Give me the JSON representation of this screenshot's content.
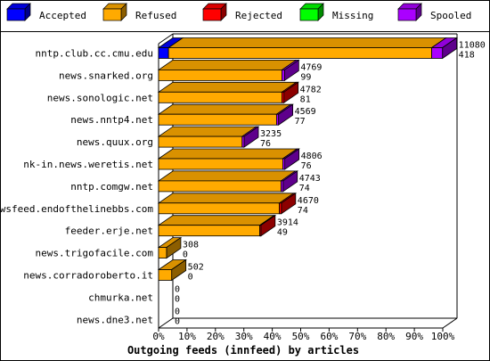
{
  "legend": [
    {
      "label": "Accepted",
      "color": "#0000ff"
    },
    {
      "label": "Refused",
      "color": "#ffaa00"
    },
    {
      "label": "Rejected",
      "color": "#ff0000"
    },
    {
      "label": "Missing",
      "color": "#00ff00"
    },
    {
      "label": "Spooled",
      "color": "#aa00ff"
    }
  ],
  "chart_data": {
    "type": "bar",
    "orientation": "horizontal",
    "stacked": true,
    "three_d": true,
    "title": "",
    "xlabel": "Outgoing feeds (innfeed) by articles",
    "ylabel": "",
    "xlim": [
      0,
      100
    ],
    "x_unit": "%",
    "x_ticks": [
      "0%",
      "10%",
      "20%",
      "30%",
      "40%",
      "50%",
      "60%",
      "70%",
      "80%",
      "90%",
      "100%"
    ],
    "categories": [
      "nntp.club.cc.cmu.edu",
      "news.snarked.org",
      "news.sonologic.net",
      "news.nntp4.net",
      "news.quux.org",
      "nk-in.news.weretis.net",
      "nntp.comgw.net",
      "newsfeed.endofthelinebbs.com",
      "feeder.erje.net",
      "news.trigofacile.com",
      "news.corradoroberto.it",
      "chmurka.net",
      "news.dne3.net"
    ],
    "series": [
      {
        "name": "Accepted",
        "color": "#0000ff",
        "values": [
          3.5,
          0,
          0,
          0,
          0,
          0,
          0,
          0,
          0,
          0,
          0,
          0,
          0
        ]
      },
      {
        "name": "Refused",
        "color": "#ffaa00",
        "values": [
          92.6,
          43.4,
          43.4,
          41.5,
          29.4,
          43.7,
          43.1,
          42.5,
          35.6,
          2.8,
          4.6,
          0,
          0
        ]
      },
      {
        "name": "Rejected",
        "color": "#ff0000",
        "values": [
          0,
          0,
          0.7,
          0,
          0,
          0,
          0,
          0.7,
          0.4,
          0,
          0,
          0,
          0
        ]
      },
      {
        "name": "Missing",
        "color": "#00ff00",
        "values": [
          0,
          0,
          0,
          0,
          0,
          0,
          0,
          0,
          0,
          0,
          0,
          0,
          0
        ]
      },
      {
        "name": "Spooled",
        "color": "#aa00ff",
        "values": [
          3.8,
          0.9,
          0,
          0.7,
          0.7,
          0.7,
          0.7,
          0,
          0,
          0,
          0,
          0,
          0
        ]
      }
    ],
    "data_labels": [
      [
        "11080",
        "418"
      ],
      [
        "4769",
        "99"
      ],
      [
        "4782",
        "81"
      ],
      [
        "4569",
        "77"
      ],
      [
        "3235",
        "76"
      ],
      [
        "4806",
        "76"
      ],
      [
        "4743",
        "74"
      ],
      [
        "4670",
        "74"
      ],
      [
        "3914",
        "49"
      ],
      [
        "308",
        "0"
      ],
      [
        "502",
        "0"
      ],
      [
        "0",
        "0"
      ],
      [
        "0",
        "0"
      ]
    ]
  }
}
